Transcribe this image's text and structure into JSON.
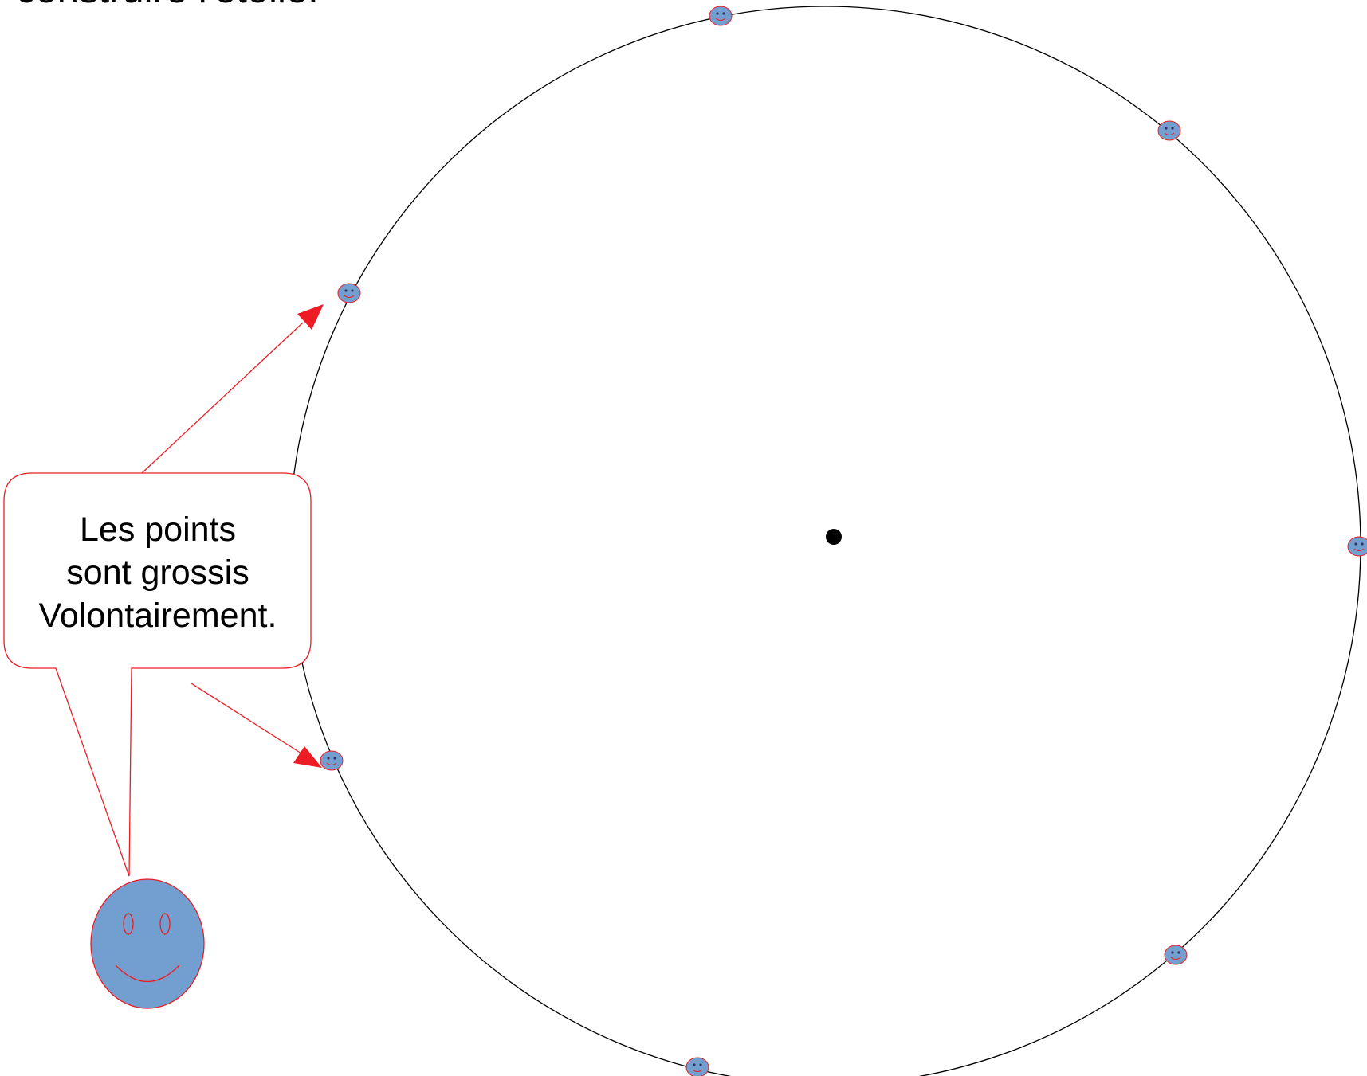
{
  "heading": {
    "text": "construire l'étoile."
  },
  "callout": {
    "lines": [
      "Les points",
      "sont grossis",
      "Volontairement."
    ]
  },
  "colors": {
    "circle_stroke": "#000000",
    "arrow_red": "#ed1c24",
    "smiley_fill": "#729fcf",
    "smiley_outline": "#ed1c24",
    "center_dot": "#000000"
  },
  "icons": {
    "point_marker": "smiley-face-icon",
    "center": "center-dot-icon",
    "character": "smiley-face-icon"
  }
}
